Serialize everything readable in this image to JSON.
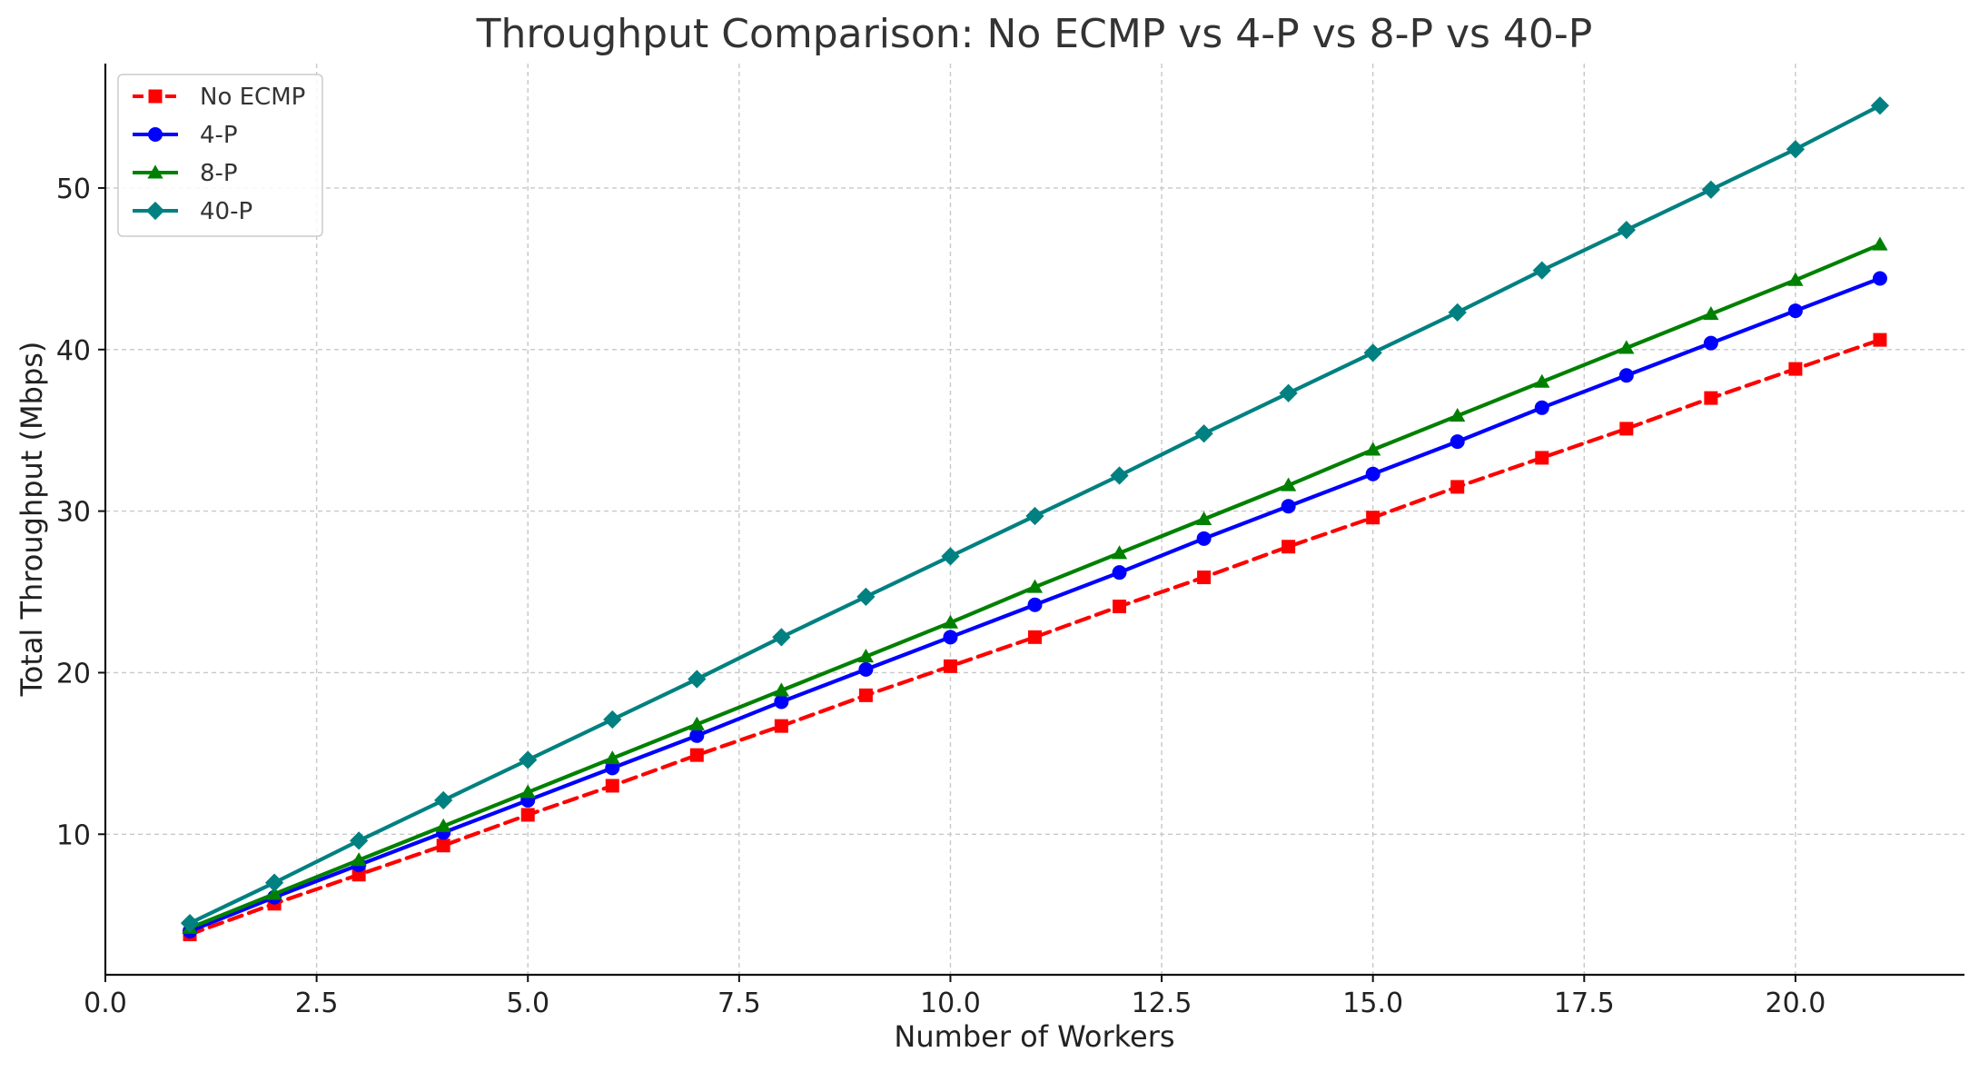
{
  "chart_data": {
    "type": "line",
    "title": "Throughput Comparison: No ECMP vs 4-P vs 8-P vs 40-P",
    "xlabel": "Number of Workers",
    "ylabel": "Total Throughput (Mbps)",
    "xlim": [
      0,
      22
    ],
    "ylim": [
      1.3,
      57.7
    ],
    "xticks": [
      0,
      2.5,
      5,
      7.5,
      10,
      12.5,
      15,
      17.5,
      20
    ],
    "xtick_labels": [
      "0.0",
      "2.5",
      "5.0",
      "7.5",
      "10.0",
      "12.5",
      "15.0",
      "17.5",
      "20.0"
    ],
    "yticks": [
      10,
      20,
      30,
      40,
      50
    ],
    "ytick_labels": [
      "10",
      "20",
      "30",
      "40",
      "50"
    ],
    "grid": true,
    "legend_position": "top-left",
    "x": [
      1,
      2,
      3,
      4,
      5,
      6,
      7,
      8,
      9,
      10,
      11,
      12,
      13,
      14,
      15,
      16,
      17,
      18,
      19,
      20,
      21
    ],
    "series": [
      {
        "name": "No ECMP",
        "color": "#ff0000",
        "line_style": "dashed",
        "marker": "square",
        "values": [
          3.8,
          5.7,
          7.5,
          9.3,
          11.2,
          13.0,
          14.9,
          16.7,
          18.6,
          20.4,
          22.2,
          24.1,
          25.9,
          27.8,
          29.6,
          31.5,
          33.3,
          35.1,
          37.0,
          38.8,
          40.6
        ]
      },
      {
        "name": "4-P",
        "color": "#0000ff",
        "line_style": "solid",
        "marker": "circle",
        "values": [
          4.0,
          6.1,
          8.1,
          10.1,
          12.1,
          14.1,
          16.1,
          18.2,
          20.2,
          22.2,
          24.2,
          26.2,
          28.3,
          30.3,
          32.3,
          34.3,
          36.4,
          38.4,
          40.4,
          42.4,
          44.4
        ]
      },
      {
        "name": "8-P",
        "color": "#008000",
        "line_style": "solid",
        "marker": "triangle",
        "values": [
          4.2,
          6.3,
          8.4,
          10.5,
          12.6,
          14.7,
          16.8,
          18.9,
          21.0,
          23.1,
          25.3,
          27.4,
          29.5,
          31.6,
          33.8,
          35.9,
          38.0,
          40.1,
          42.2,
          44.3,
          46.5
        ]
      },
      {
        "name": "40-P",
        "color": "#008080",
        "line_style": "solid",
        "marker": "diamond",
        "values": [
          4.5,
          7.0,
          9.6,
          12.1,
          14.6,
          17.1,
          19.6,
          22.2,
          24.7,
          27.2,
          29.7,
          32.2,
          34.8,
          37.3,
          39.8,
          42.3,
          44.9,
          47.4,
          49.9,
          52.4,
          55.1
        ]
      }
    ]
  }
}
